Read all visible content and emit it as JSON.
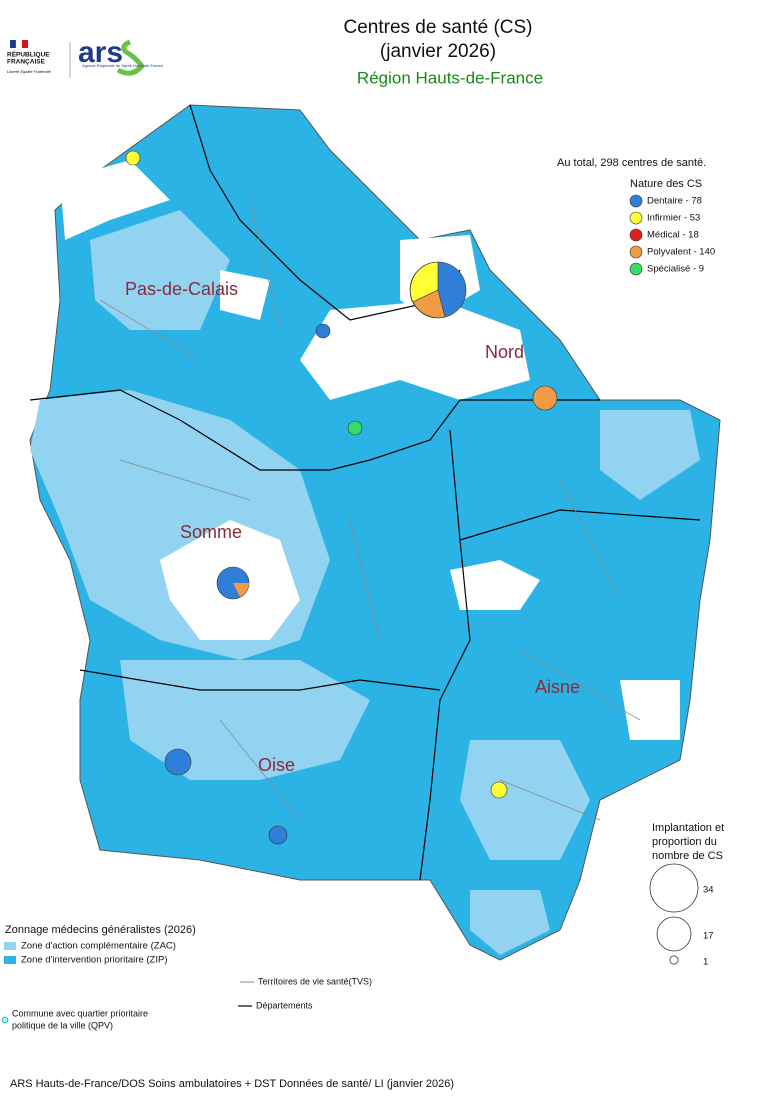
{
  "header": {
    "title_line1": "Centres de santé (CS)",
    "title_line2": "(janvier 2026)",
    "region": "Région Hauts-de-France"
  },
  "logos": {
    "republique_1": "RÉPUBLIQUE",
    "republique_2": "FRANÇAISE",
    "motto": "Liberté Égalité Fraternité",
    "ars": "ars",
    "ars_subtitle": "Agence Régionale de Santé Hauts-de-France"
  },
  "departments": [
    "Pas-de-Calais",
    "Nord",
    "Somme",
    "Aisne",
    "Oise"
  ],
  "legend_nature": {
    "total": "Au total, 298 centres de santé.",
    "title": "Nature des CS",
    "items": [
      {
        "label": "Dentaire - 78",
        "color": "#2f7ed8"
      },
      {
        "label": "Infirmier - 53",
        "color": "#ffff33"
      },
      {
        "label": "Médical - 18",
        "color": "#e02020"
      },
      {
        "label": "Polyvalent - 140",
        "color": "#f29a44"
      },
      {
        "label": "Spécialisé - 9",
        "color": "#33dd66"
      }
    ]
  },
  "legend_size": {
    "title": [
      "Implantation et",
      "proportion du",
      "nombre de CS"
    ],
    "values": [
      34,
      17,
      1
    ]
  },
  "legend_zonage": {
    "title": "Zonnage médecins généralistes (2026)",
    "items": [
      {
        "label": "Zone d'action complémentaire (ZAC)",
        "color": "#93d3f2"
      },
      {
        "label": "Zone d'intervention prioritaire (ZIP)",
        "color": "#2bb3e5"
      }
    ]
  },
  "legend_lines": {
    "tvs": "Territoires de vie santé(TVS)",
    "departements": "Départements"
  },
  "qpv": [
    "Commune avec quartier prioritaire",
    "politique de la ville (QPV)"
  ],
  "source": "ARS Hauts-de-France/DOS Soins ambulatoires + DST Données de santé/ LI (janvier 2026)"
}
